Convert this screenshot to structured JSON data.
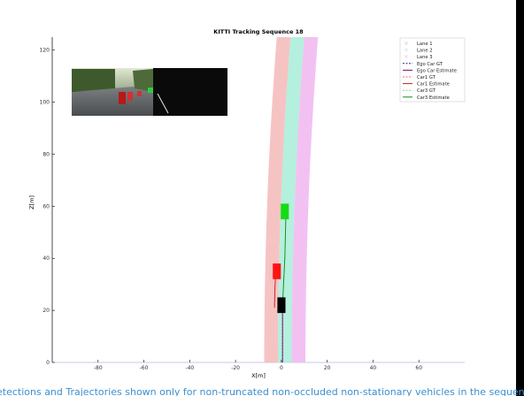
{
  "chart_data": {
    "type": "line",
    "title": "KITTI Tracking Sequence 18",
    "xlabel": "X[m]",
    "ylabel": "Z[m]",
    "xlim": [
      -100,
      80
    ],
    "ylim": [
      0,
      125
    ],
    "x_ticks": [
      "-80",
      "-60",
      "-40",
      "-20",
      "0",
      "20",
      "40",
      "60"
    ],
    "y_ticks": [
      "0",
      "20",
      "40",
      "60",
      "80",
      "100",
      "120"
    ],
    "grid": false,
    "legend_position": "top-right",
    "lanes": [
      {
        "name": "Lane 1",
        "color": "#f4b8b8",
        "x_center_bottom": -4.5,
        "x_center_top": 1,
        "width": 6
      },
      {
        "name": "Lane 2",
        "color": "#a8ecd8",
        "x_center_bottom": 1.5,
        "x_center_top": 7,
        "width": 6
      },
      {
        "name": "Lane 3",
        "color": "#f0b6f0",
        "x_center_bottom": 7.5,
        "x_center_top": 13,
        "width": 6
      }
    ],
    "series": [
      {
        "name": "Ego Car GT",
        "color": "#1a2a8a",
        "dashed": true,
        "points": [
          [
            0.5,
            0
          ],
          [
            0.5,
            10
          ],
          [
            0.5,
            20
          ]
        ]
      },
      {
        "name": "Ego Car Estimate",
        "color": "#7a0f6e",
        "dashed": false,
        "points": [
          [
            0.5,
            0
          ],
          [
            0.5,
            10
          ],
          [
            0.5,
            22
          ]
        ]
      },
      {
        "name": "Car1 GT",
        "color": "#ff6060",
        "dashed": true,
        "points": [
          [
            -3,
            22
          ],
          [
            -2.8,
            28
          ],
          [
            -2.5,
            34
          ]
        ]
      },
      {
        "name": "Car1 Estimate",
        "color": "#c81e1e",
        "dashed": false,
        "points": [
          [
            -3,
            21
          ],
          [
            -2.8,
            28
          ],
          [
            -2.5,
            35
          ]
        ]
      },
      {
        "name": "Car3 GT",
        "color": "#66dd66",
        "dashed": true,
        "points": [
          [
            0.5,
            22
          ],
          [
            1.5,
            40
          ],
          [
            2,
            58
          ]
        ]
      },
      {
        "name": "Car3 Estimate",
        "color": "#148a14",
        "dashed": false,
        "points": [
          [
            0.5,
            22
          ],
          [
            1.5,
            40
          ],
          [
            2,
            58
          ]
        ]
      }
    ],
    "vehicles": [
      {
        "name": "Ego Car",
        "color": "#000000",
        "x": 0,
        "z": 22,
        "w": 3.5,
        "h": 6
      },
      {
        "name": "Car1",
        "color": "#ff1414",
        "x": -2,
        "z": 35,
        "w": 3.5,
        "h": 6
      },
      {
        "name": "Car3",
        "color": "#14dc14",
        "x": 1.5,
        "z": 58,
        "w": 3.5,
        "h": 6
      }
    ]
  },
  "legend_items": [
    {
      "label": "Lane 1",
      "color": "#f4b8b8",
      "style": "marker"
    },
    {
      "label": "Lane 2",
      "color": "#a8ecd8",
      "style": "marker"
    },
    {
      "label": "Lane 3",
      "color": "#f0b6f0",
      "style": "marker"
    },
    {
      "label": "Ego Car GT",
      "color": "#1a2a8a",
      "style": "dashed"
    },
    {
      "label": "Ego Car Estimate",
      "color": "#7a0f6e",
      "style": "solid"
    },
    {
      "label": "Car1 GT",
      "color": "#ff6060",
      "style": "dashed"
    },
    {
      "label": "Car1 Estimate",
      "color": "#c81e1e",
      "style": "solid"
    },
    {
      "label": "Car3 GT",
      "color": "#66dd66",
      "style": "dashed"
    },
    {
      "label": "Car3 Estimate",
      "color": "#148a14",
      "style": "solid"
    }
  ],
  "caption": "etections and Trajectories shown only for non-truncated non-occluded non-stationary vehicles in the sequence"
}
